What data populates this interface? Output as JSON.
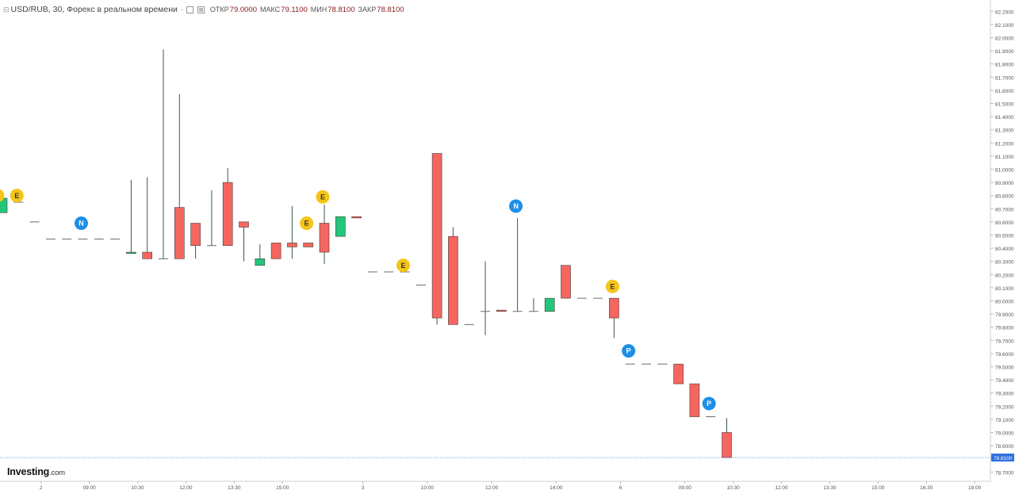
{
  "header": {
    "title": "USD/RUB, 30, Форекс в реальном времени",
    "dash": "-",
    "open_label": "ОТКР",
    "open_value": "79.0000",
    "high_label": "МАКС",
    "high_value": "79.1100",
    "low_label": "МИН",
    "low_value": "78.8100",
    "close_label": "ЗАКР",
    "close_value": "78.8100"
  },
  "logo": {
    "brand": "Investing",
    "domain": ".com"
  },
  "colors": {
    "up": "#22c77a",
    "down": "#f4665f",
    "event_e": "#f5c518",
    "event_np": "#1e8fe6",
    "last_price": "#2f6fe0",
    "wick": "#3a5a4a"
  },
  "chart_data": {
    "type": "candlestick",
    "symbol": "USD/RUB",
    "interval": "30",
    "ylim": [
      78.65,
      82.22
    ],
    "y_ticks": [
      "82.2000",
      "82.1000",
      "82.0000",
      "81.9000",
      "81.8000",
      "81.7000",
      "81.6000",
      "81.5000",
      "81.4000",
      "81.3000",
      "81.2000",
      "81.1000",
      "81.0000",
      "80.9000",
      "80.8000",
      "80.7000",
      "80.6000",
      "80.5000",
      "80.4000",
      "80.3000",
      "80.2000",
      "80.1000",
      "80.0000",
      "79.9000",
      "79.8000",
      "79.7000",
      "79.6000",
      "79.5000",
      "79.4000",
      "79.3000",
      "79.2000",
      "79.1000",
      "79.0000",
      "78.9000",
      "78.7000"
    ],
    "x_ticks": [
      {
        "i": 2.4,
        "label": "2"
      },
      {
        "i": 5.4,
        "label": "09:00"
      },
      {
        "i": 8.4,
        "label": "10:30"
      },
      {
        "i": 11.4,
        "label": "12:00"
      },
      {
        "i": 14.4,
        "label": "13:30"
      },
      {
        "i": 17.4,
        "label": "15:00"
      },
      {
        "i": 22.4,
        "label": "3"
      },
      {
        "i": 26.4,
        "label": "10:00"
      },
      {
        "i": 30.4,
        "label": "12:00"
      },
      {
        "i": 34.4,
        "label": "14:00"
      },
      {
        "i": 38.4,
        "label": "6"
      },
      {
        "i": 42.4,
        "label": "09:00"
      },
      {
        "i": 45.4,
        "label": "10:30"
      },
      {
        "i": 48.4,
        "label": "12:00"
      },
      {
        "i": 51.4,
        "label": "13:30"
      },
      {
        "i": 54.4,
        "label": "15:00"
      },
      {
        "i": 57.4,
        "label": "16:30"
      },
      {
        "i": 60.4,
        "label": "18:00"
      }
    ],
    "candles": [
      {
        "o": 80.67,
        "h": 80.78,
        "l": 80.67,
        "c": 80.78
      },
      {
        "o": 80.75,
        "h": 80.75,
        "l": 80.75,
        "c": 80.75
      },
      {
        "o": 80.6,
        "h": 80.6,
        "l": 80.6,
        "c": 80.6
      },
      {
        "o": 80.47,
        "h": 80.47,
        "l": 80.47,
        "c": 80.47
      },
      {
        "o": 80.47,
        "h": 80.47,
        "l": 80.47,
        "c": 80.47
      },
      {
        "o": 80.47,
        "h": 80.47,
        "l": 80.47,
        "c": 80.47
      },
      {
        "o": 80.47,
        "h": 80.47,
        "l": 80.47,
        "c": 80.47
      },
      {
        "o": 80.47,
        "h": 80.47,
        "l": 80.47,
        "c": 80.47
      },
      {
        "o": 80.36,
        "h": 80.92,
        "l": 80.36,
        "c": 80.37
      },
      {
        "o": 80.37,
        "h": 80.94,
        "l": 80.32,
        "c": 80.32
      },
      {
        "o": 80.32,
        "h": 81.91,
        "l": 80.32,
        "c": 80.32
      },
      {
        "o": 80.71,
        "h": 81.57,
        "l": 80.32,
        "c": 80.32
      },
      {
        "o": 80.59,
        "h": 80.59,
        "l": 80.32,
        "c": 80.42
      },
      {
        "o": 80.42,
        "h": 80.84,
        "l": 80.42,
        "c": 80.42
      },
      {
        "o": 80.9,
        "h": 81.01,
        "l": 80.42,
        "c": 80.42
      },
      {
        "o": 80.6,
        "h": 80.6,
        "l": 80.3,
        "c": 80.56
      },
      {
        "o": 80.27,
        "h": 80.43,
        "l": 80.27,
        "c": 80.32
      },
      {
        "o": 80.44,
        "h": 80.44,
        "l": 80.32,
        "c": 80.32
      },
      {
        "o": 80.44,
        "h": 80.72,
        "l": 80.32,
        "c": 80.41
      },
      {
        "o": 80.44,
        "h": 80.44,
        "l": 80.41,
        "c": 80.41
      },
      {
        "o": 80.59,
        "h": 80.73,
        "l": 80.28,
        "c": 80.37
      },
      {
        "o": 80.49,
        "h": 80.64,
        "l": 80.49,
        "c": 80.64
      },
      {
        "o": 80.64,
        "h": 80.64,
        "l": 80.63,
        "c": 80.63
      },
      {
        "o": 80.22,
        "h": 80.22,
        "l": 80.22,
        "c": 80.22
      },
      {
        "o": 80.22,
        "h": 80.22,
        "l": 80.22,
        "c": 80.22
      },
      {
        "o": 80.22,
        "h": 80.22,
        "l": 80.22,
        "c": 80.22
      },
      {
        "o": 80.12,
        "h": 80.12,
        "l": 80.12,
        "c": 80.12
      },
      {
        "o": 81.12,
        "h": 81.12,
        "l": 79.82,
        "c": 79.87
      },
      {
        "o": 80.49,
        "h": 80.56,
        "l": 79.82,
        "c": 79.82
      },
      {
        "o": 79.82,
        "h": 79.82,
        "l": 79.82,
        "c": 79.82
      },
      {
        "o": 79.92,
        "h": 80.3,
        "l": 79.74,
        "c": 79.92
      },
      {
        "o": 79.93,
        "h": 79.93,
        "l": 79.92,
        "c": 79.92
      },
      {
        "o": 79.92,
        "h": 80.63,
        "l": 79.92,
        "c": 79.92
      },
      {
        "o": 79.92,
        "h": 80.02,
        "l": 79.92,
        "c": 79.92
      },
      {
        "o": 79.92,
        "h": 80.02,
        "l": 79.92,
        "c": 80.02
      },
      {
        "o": 80.27,
        "h": 80.27,
        "l": 80.02,
        "c": 80.02
      },
      {
        "o": 80.02,
        "h": 80.02,
        "l": 80.02,
        "c": 80.02
      },
      {
        "o": 80.02,
        "h": 80.02,
        "l": 80.02,
        "c": 80.02
      },
      {
        "o": 80.02,
        "h": 80.02,
        "l": 79.72,
        "c": 79.87
      },
      {
        "o": 79.52,
        "h": 79.52,
        "l": 79.52,
        "c": 79.52
      },
      {
        "o": 79.52,
        "h": 79.52,
        "l": 79.52,
        "c": 79.52
      },
      {
        "o": 79.52,
        "h": 79.52,
        "l": 79.52,
        "c": 79.52
      },
      {
        "o": 79.52,
        "h": 79.52,
        "l": 79.37,
        "c": 79.37
      },
      {
        "o": 79.37,
        "h": 79.37,
        "l": 79.12,
        "c": 79.12
      },
      {
        "o": 79.12,
        "h": 79.12,
        "l": 79.12,
        "c": 79.12
      },
      {
        "o": 79.0,
        "h": 79.11,
        "l": 78.81,
        "c": 78.81
      }
    ],
    "events": [
      {
        "i": -0.3,
        "letter": "E",
        "kind": "E",
        "y": 80.8
      },
      {
        "i": 0.9,
        "letter": "E",
        "kind": "E",
        "y": 80.8
      },
      {
        "i": 4.9,
        "letter": "N",
        "kind": "NP",
        "y": 80.59
      },
      {
        "i": 18.9,
        "letter": "E",
        "kind": "E",
        "y": 80.59
      },
      {
        "i": 19.9,
        "letter": "E",
        "kind": "E",
        "y": 80.79
      },
      {
        "i": 24.9,
        "letter": "E",
        "kind": "E",
        "y": 80.27
      },
      {
        "i": 31.9,
        "letter": "N",
        "kind": "NP",
        "y": 80.72
      },
      {
        "i": 37.9,
        "letter": "E",
        "kind": "E",
        "y": 80.11
      },
      {
        "i": 38.9,
        "letter": "P",
        "kind": "NP",
        "y": 79.62
      },
      {
        "i": 43.9,
        "letter": "P",
        "kind": "NP",
        "y": 79.22
      }
    ],
    "last_price": "78.8100"
  }
}
